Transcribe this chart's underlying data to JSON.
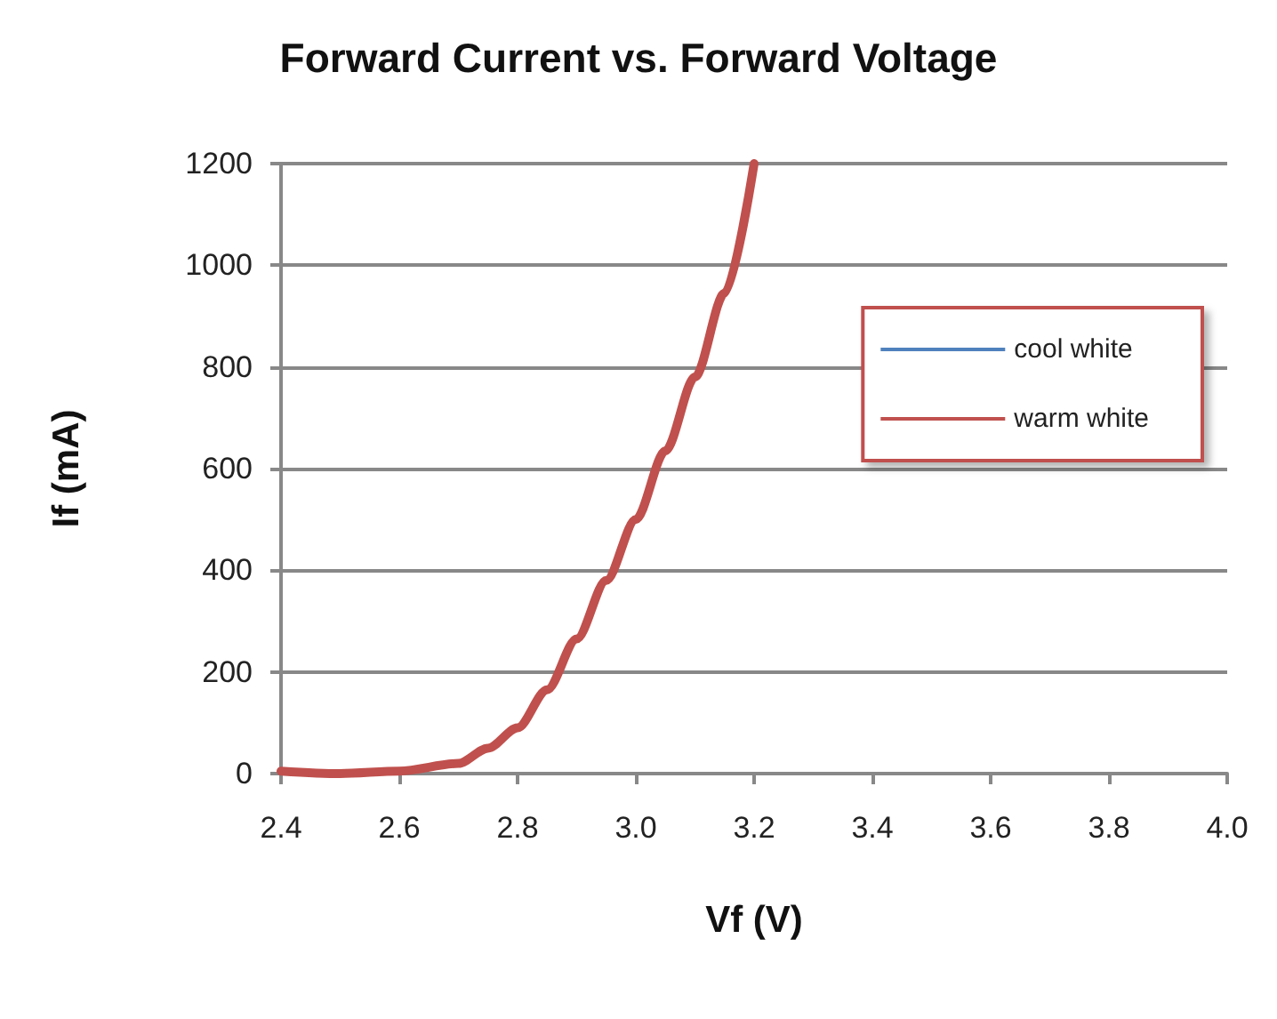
{
  "chart_data": {
    "type": "line",
    "title": "Forward Current vs. Forward Voltage",
    "xlabel": "Vf (V)",
    "ylabel": "If (mA)",
    "x": [
      2.4,
      2.5,
      2.6,
      2.7,
      2.75,
      2.8,
      2.85,
      2.9,
      2.95,
      3.0,
      3.05,
      3.1,
      3.15,
      3.2
    ],
    "series": [
      {
        "name": "cool white",
        "color": "#4f81bd",
        "values": [
          null,
          null,
          null,
          null,
          null,
          null,
          null,
          null,
          null,
          null,
          null,
          null,
          null,
          null
        ]
      },
      {
        "name": "warm white",
        "color": "#c0504d",
        "values": [
          5,
          0,
          5,
          20,
          50,
          90,
          165,
          265,
          380,
          500,
          635,
          780,
          945,
          1200
        ]
      }
    ],
    "xlim": [
      2.4,
      4.0
    ],
    "xticks": [
      {
        "value": 2.4,
        "label": "2.4"
      },
      {
        "value": 2.6,
        "label": "2.6"
      },
      {
        "value": 2.8,
        "label": "2.8"
      },
      {
        "value": 3.0,
        "label": "3.0"
      },
      {
        "value": 3.2,
        "label": "3.2"
      },
      {
        "value": 3.4,
        "label": "3.4"
      },
      {
        "value": 3.6,
        "label": "3.6"
      },
      {
        "value": 3.8,
        "label": "3.8"
      },
      {
        "value": 4.0,
        "label": "4.0"
      }
    ],
    "ylim": [
      0,
      1200
    ],
    "yticks": [
      0,
      200,
      400,
      600,
      800,
      1000,
      1200
    ],
    "grid": "y",
    "legend": "top right",
    "marker": "none",
    "line_style": "solid"
  }
}
